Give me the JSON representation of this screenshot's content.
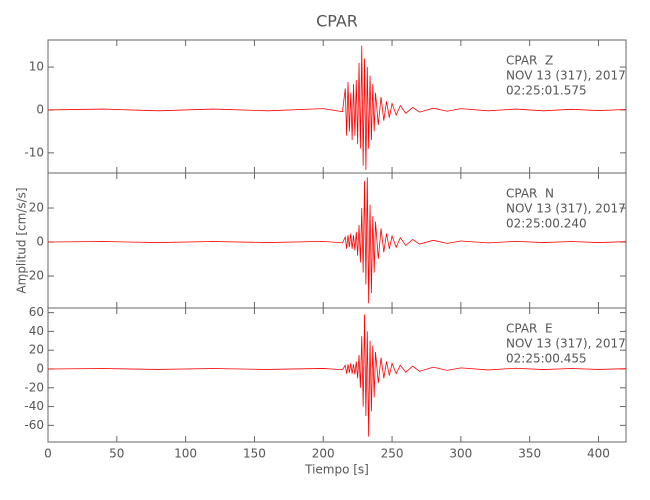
{
  "chart_data": [
    {
      "type": "line",
      "title": "CPAR",
      "color": "#ff0000",
      "annotations": [
        "CPAR  Z",
        "NOV 13 (317), 2017",
        "02:25:01.575"
      ],
      "xlim": [
        0,
        420
      ],
      "xticks": [
        0,
        50,
        100,
        150,
        200,
        250,
        300,
        350,
        400
      ],
      "ylim": [
        -14.7,
        16.3
      ],
      "yticks": [
        -10,
        0,
        10
      ],
      "x": [
        0,
        40,
        80,
        120,
        160,
        200,
        214,
        216,
        217,
        218,
        219,
        220,
        221,
        222,
        223,
        224,
        225,
        226,
        227,
        228,
        229,
        230,
        231,
        232,
        233,
        234,
        235,
        236,
        237,
        238,
        240,
        242,
        244,
        246,
        248,
        250,
        253,
        256,
        260,
        265,
        270,
        280,
        290,
        300,
        320,
        340,
        360,
        380,
        400,
        420
      ],
      "values": [
        0,
        0.2,
        -0.2,
        0.2,
        -0.2,
        0.3,
        -0.4,
        5,
        -6,
        6.5,
        -5,
        4,
        -7,
        6,
        -6,
        7,
        -8,
        11,
        -9,
        15,
        -13,
        12,
        -14,
        10,
        -9,
        8,
        -7,
        6,
        -5,
        4,
        -3.5,
        3,
        -2.5,
        2,
        -1.8,
        1.5,
        -1.2,
        1,
        -0.8,
        0.6,
        -0.5,
        0.4,
        -0.3,
        0.3,
        -0.2,
        0.2,
        -0.2,
        0.15,
        -0.15,
        0.1
      ]
    },
    {
      "type": "line",
      "ylabel": "Amplitud [cm/s/s]",
      "color": "#ff0000",
      "annotations": [
        "CPAR  N",
        "NOV 13 (317), 2017",
        "02:25:00.240"
      ],
      "xlim": [
        0,
        420
      ],
      "xticks": [
        0,
        50,
        100,
        150,
        200,
        250,
        300,
        350,
        400
      ],
      "ylim": [
        -38.8,
        40.6
      ],
      "yticks": [
        -20,
        0,
        20
      ],
      "x": [
        0,
        40,
        80,
        120,
        160,
        200,
        214,
        216,
        217,
        218,
        219,
        220,
        221,
        222,
        223,
        224,
        225,
        226,
        227,
        228,
        229,
        230,
        231,
        232,
        233,
        234,
        235,
        236,
        237,
        238,
        240,
        242,
        244,
        246,
        248,
        250,
        253,
        256,
        260,
        265,
        270,
        280,
        290,
        300,
        320,
        340,
        360,
        380,
        400,
        420
      ],
      "values": [
        0,
        0.3,
        -0.3,
        0.3,
        -0.3,
        0.4,
        -0.5,
        3,
        -4,
        4,
        -3,
        5,
        -4,
        4,
        -5,
        6,
        -8,
        10,
        -12,
        20,
        -18,
        36,
        -25,
        38,
        -36,
        22,
        -30,
        15,
        -18,
        12,
        -10,
        8,
        -6,
        5,
        -4,
        3.5,
        -3,
        2.5,
        -2,
        1.5,
        -1.2,
        1,
        -0.8,
        0.6,
        -0.5,
        0.4,
        -0.3,
        0.3,
        -0.3,
        0.2
      ]
    },
    {
      "type": "line",
      "xlabel": "Tiempo [s]",
      "color": "#ff0000",
      "annotations": [
        "CPAR  E",
        "NOV 13 (317), 2017",
        "02:25:00.455"
      ],
      "xlim": [
        0,
        420
      ],
      "xticks": [
        0,
        50,
        100,
        150,
        200,
        250,
        300,
        350,
        400
      ],
      "ylim": [
        -77.7,
        64.9
      ],
      "yticks": [
        -60,
        -40,
        -20,
        0,
        20,
        40,
        60
      ],
      "x": [
        0,
        40,
        80,
        120,
        160,
        200,
        214,
        216,
        217,
        218,
        219,
        220,
        221,
        222,
        223,
        224,
        225,
        226,
        227,
        228,
        229,
        230,
        231,
        232,
        233,
        234,
        235,
        236,
        237,
        238,
        240,
        242,
        244,
        246,
        248,
        250,
        253,
        256,
        260,
        265,
        270,
        280,
        290,
        300,
        320,
        340,
        360,
        380,
        400,
        420
      ],
      "values": [
        0,
        0.5,
        -0.5,
        0.5,
        -0.5,
        0.6,
        -0.8,
        4,
        -5,
        5,
        -4,
        6,
        -5,
        5,
        -6,
        8,
        -10,
        15,
        -20,
        35,
        -40,
        58,
        -50,
        40,
        -72,
        30,
        -45,
        25,
        -30,
        18,
        -15,
        12,
        -10,
        8,
        -7,
        6,
        -5,
        4,
        -3.5,
        3,
        -2.5,
        2,
        -1.5,
        1.2,
        -1,
        0.8,
        -0.6,
        0.5,
        -0.5,
        0.3
      ]
    }
  ]
}
